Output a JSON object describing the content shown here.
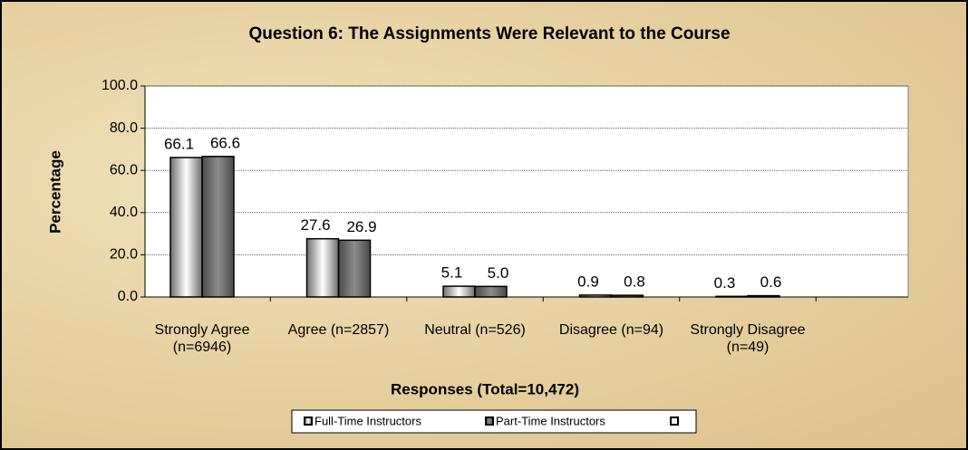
{
  "chart_data": {
    "type": "bar",
    "title": "Question 6:  The Assignments Were Relevant to the Course",
    "y_label": "Percentage",
    "x_label": "Responses (Total=10,472)",
    "categories": [
      "Strongly Agree (n=6946)",
      "Agree (n=2857)",
      "Neutral (n=526)",
      "Disagree (n=94)",
      "Strongly Disagree (n=49)"
    ],
    "series": [
      {
        "name": "Full-Time Instructors",
        "color": "#ffffff",
        "values": [
          66.1,
          27.6,
          5.1,
          0.9,
          0.3
        ],
        "value_labels": [
          "66.1",
          "27.6",
          "5.1",
          "0.9",
          "0.3"
        ]
      },
      {
        "name": "Part-Time Instructors",
        "color": "#8c8c8c",
        "values": [
          66.6,
          26.9,
          5.0,
          0.8,
          0.6
        ],
        "value_labels": [
          "66.6",
          "26.9",
          "5.0",
          "0.8",
          "0.6"
        ]
      }
    ],
    "ylim": [
      0,
      100
    ],
    "yticks": [
      {
        "value": 0,
        "label": "0.0"
      },
      {
        "value": 20,
        "label": "20.0"
      },
      {
        "value": 40,
        "label": "40.0"
      },
      {
        "value": 60,
        "label": "60.0"
      },
      {
        "value": 80,
        "label": "80.0"
      },
      {
        "value": 100,
        "label": "100.0"
      }
    ],
    "grid": true
  }
}
